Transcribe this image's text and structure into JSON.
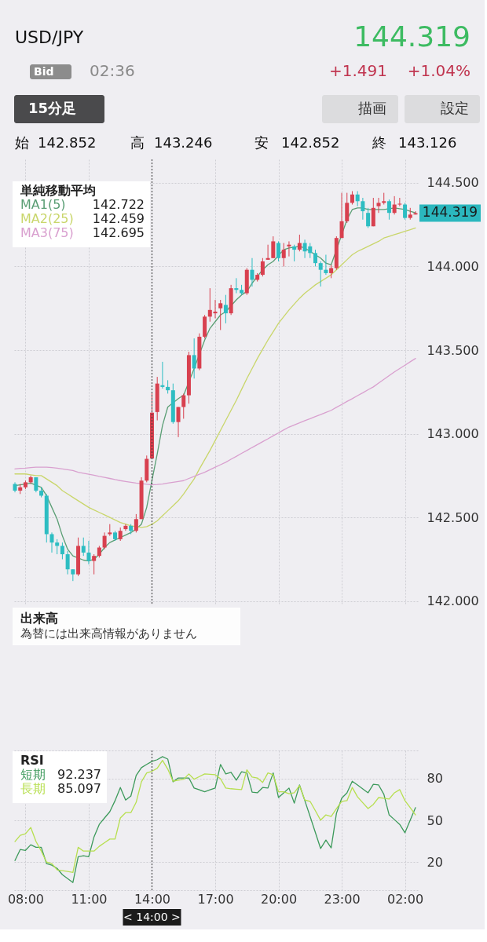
{
  "chart_data": [
    {
      "type": "other",
      "title": "USD/JPY",
      "annotations": [
        "144.319",
        "+1.491",
        "+1.04%",
        "Bid",
        "02:36",
        "15分足",
        "描画",
        "設定",
        "始",
        "142.852",
        "高",
        "143.246",
        "安",
        "142.852",
        "終",
        "143.126"
      ]
    },
    {
      "type": "candlestick",
      "categories": [
        null,
        null,
        "08:00",
        null,
        null,
        null,
        null,
        null,
        null,
        null,
        null,
        null,
        null,
        null,
        "11:00",
        null,
        null,
        null,
        null,
        null,
        null,
        null,
        null,
        null,
        null,
        null,
        "14:00",
        null,
        null,
        null,
        null,
        null,
        null,
        null,
        null,
        null,
        null,
        null,
        "17:00",
        null,
        null,
        null,
        null,
        null,
        null,
        null,
        null,
        null,
        null,
        null,
        "20:00",
        null,
        null,
        null,
        null,
        null,
        null,
        null,
        null,
        null,
        null,
        null,
        "23:00",
        null,
        null,
        null,
        null,
        null,
        null,
        null,
        null,
        null,
        null,
        null,
        "02:00",
        null,
        null
      ],
      "ohlc": [
        [
          142.7,
          142.71,
          142.65,
          142.66
        ],
        [
          142.66,
          142.7,
          142.64,
          142.68
        ],
        [
          142.68,
          142.72,
          142.67,
          142.71
        ],
        [
          142.71,
          142.75,
          142.7,
          142.74
        ],
        [
          142.74,
          142.74,
          142.65,
          142.66
        ],
        [
          142.66,
          142.68,
          142.62,
          142.63
        ],
        [
          142.63,
          142.64,
          142.35,
          142.4
        ],
        [
          142.4,
          142.41,
          142.29,
          142.35
        ],
        [
          142.35,
          142.37,
          142.28,
          142.33
        ],
        [
          142.33,
          142.35,
          142.25,
          142.28
        ],
        [
          142.28,
          142.3,
          142.16,
          142.19
        ],
        [
          142.19,
          142.19,
          142.12,
          142.16
        ],
        [
          142.16,
          142.38,
          142.15,
          142.33
        ],
        [
          142.33,
          142.38,
          142.27,
          142.29
        ],
        [
          142.29,
          142.36,
          142.22,
          142.24
        ],
        [
          142.24,
          142.28,
          142.16,
          142.27
        ],
        [
          142.27,
          142.33,
          142.26,
          142.32
        ],
        [
          142.32,
          142.41,
          142.31,
          142.39
        ],
        [
          142.4,
          142.46,
          142.39,
          142.41
        ],
        [
          142.41,
          142.42,
          142.36,
          142.37
        ],
        [
          142.37,
          142.44,
          142.36,
          142.42
        ],
        [
          142.43,
          142.46,
          142.42,
          142.45
        ],
        [
          142.45,
          142.46,
          142.4,
          142.42
        ],
        [
          142.42,
          142.52,
          142.41,
          142.49
        ],
        [
          142.49,
          142.74,
          142.49,
          142.72
        ],
        [
          142.72,
          142.87,
          142.71,
          142.85
        ],
        [
          142.852,
          143.246,
          142.852,
          143.126
        ],
        [
          143.13,
          143.34,
          143.08,
          143.3
        ],
        [
          143.29,
          143.43,
          143.27,
          143.28
        ],
        [
          143.28,
          143.32,
          143.24,
          143.26
        ],
        [
          143.26,
          143.3,
          143.06,
          143.07
        ],
        [
          143.07,
          143.16,
          142.98,
          143.16
        ],
        [
          143.16,
          143.24,
          143.09,
          143.23
        ],
        [
          143.23,
          143.49,
          143.18,
          143.47
        ],
        [
          143.47,
          143.57,
          143.33,
          143.39
        ],
        [
          143.39,
          143.6,
          143.38,
          143.58
        ],
        [
          143.58,
          143.71,
          143.57,
          143.7
        ],
        [
          143.7,
          143.87,
          143.67,
          143.74
        ],
        [
          143.72,
          143.8,
          143.69,
          143.73
        ],
        [
          143.75,
          143.8,
          143.62,
          143.78
        ],
        [
          143.77,
          143.83,
          143.66,
          143.72
        ],
        [
          143.72,
          143.89,
          143.71,
          143.87
        ],
        [
          143.87,
          143.93,
          143.84,
          143.86
        ],
        [
          143.86,
          143.89,
          143.83,
          143.84
        ],
        [
          143.84,
          143.99,
          143.83,
          143.98
        ],
        [
          143.98,
          144.05,
          143.88,
          143.92
        ],
        [
          143.92,
          143.96,
          143.91,
          143.95
        ],
        [
          143.95,
          144.05,
          143.94,
          144.03
        ],
        [
          144.04,
          144.13,
          144.04,
          144.05
        ],
        [
          144.05,
          144.18,
          144.05,
          144.15
        ],
        [
          144.14,
          144.15,
          144.03,
          144.05
        ],
        [
          144.05,
          144.14,
          144.0,
          144.1
        ],
        [
          144.12,
          144.15,
          144.06,
          144.13
        ],
        [
          144.12,
          144.13,
          144.03,
          144.1
        ],
        [
          144.1,
          144.19,
          144.09,
          144.14
        ],
        [
          144.14,
          144.16,
          144.05,
          144.09
        ],
        [
          144.12,
          144.14,
          144.05,
          144.08
        ],
        [
          144.08,
          144.1,
          144.0,
          144.02
        ],
        [
          144.02,
          144.03,
          143.88,
          143.98
        ],
        [
          143.98,
          144.07,
          143.95,
          143.96
        ],
        [
          143.96,
          144.01,
          143.93,
          143.99
        ],
        [
          143.99,
          144.18,
          143.98,
          144.17
        ],
        [
          144.17,
          144.44,
          144.17,
          144.27
        ],
        [
          144.27,
          144.44,
          144.26,
          144.38
        ],
        [
          144.38,
          144.45,
          144.37,
          144.43
        ],
        [
          144.43,
          144.45,
          144.36,
          144.39
        ],
        [
          144.39,
          144.41,
          144.28,
          144.33
        ],
        [
          144.32,
          144.35,
          144.23,
          144.24
        ],
        [
          144.24,
          144.41,
          144.24,
          144.35
        ],
        [
          144.36,
          144.41,
          144.32,
          144.38
        ],
        [
          144.38,
          144.44,
          144.37,
          144.39
        ],
        [
          144.39,
          144.4,
          144.28,
          144.32
        ],
        [
          144.32,
          144.42,
          144.31,
          144.37
        ],
        [
          144.37,
          144.41,
          144.36,
          144.375
        ],
        [
          144.37,
          144.38,
          144.28,
          144.29
        ],
        [
          144.29,
          144.35,
          144.28,
          144.31
        ],
        [
          144.31,
          144.33,
          144.31,
          144.319
        ]
      ],
      "colors": [
        "#2dbdc2",
        "#d8404f",
        "#d8404f",
        "#d8404f",
        "#2dbdc2",
        "#2dbdc2",
        "#2dbdc2",
        "#2dbdc2",
        "#2dbdc2",
        "#2dbdc2",
        "#2dbdc2",
        "#2dbdc2",
        "#d8404f",
        "#2dbdc2",
        "#2dbdc2",
        "#d8404f",
        "#d8404f",
        "#d8404f",
        "#d8404f",
        "#2dbdc2",
        "#d8404f",
        "#d8404f",
        "#2dbdc2",
        "#d8404f",
        "#d8404f",
        "#d8404f",
        "#d8404f",
        "#d8404f",
        "#2dbdc2",
        "#2dbdc2",
        "#2dbdc2",
        "#d8404f",
        "#d8404f",
        "#d8404f",
        "#2dbdc2",
        "#d8404f",
        "#d8404f",
        "#d8404f",
        "#d8404f",
        "#d8404f",
        "#2dbdc2",
        "#d8404f",
        "#2dbdc2",
        "#2dbdc2",
        "#d8404f",
        "#2dbdc2",
        "#d8404f",
        "#d8404f",
        "#d8404f",
        "#d8404f",
        "#2dbdc2",
        "#d8404f",
        "#d8404f",
        "#2dbdc2",
        "#d8404f",
        "#2dbdc2",
        "#2dbdc2",
        "#2dbdc2",
        "#2dbdc2",
        "#2dbdc2",
        "#d8404f",
        "#d8404f",
        "#d8404f",
        "#d8404f",
        "#d8404f",
        "#2dbdc2",
        "#2dbdc2",
        "#2dbdc2",
        "#d8404f",
        "#d8404f",
        "#d8404f",
        "#2dbdc2",
        "#d8404f",
        "#d8404f",
        "#2dbdc2",
        "#d8404f",
        "#d8404f"
      ],
      "series": [
        {
          "name": "MA1(5)",
          "type": "line",
          "color": "#5a9e74",
          "values": [
            142.69,
            142.695,
            142.7,
            142.705,
            null,
            142.68,
            142.63,
            142.56,
            142.49,
            142.39,
            142.31,
            142.27,
            null,
            142.245,
            142.24,
            142.25,
            142.28,
            142.32,
            142.35,
            142.365,
            142.38,
            142.395,
            142.41,
            142.43,
            142.46,
            142.56,
            142.722,
            142.88,
            143.05,
            143.16,
            null,
            143.21,
            143.23,
            null,
            143.39,
            null,
            143.56,
            143.63,
            143.67,
            143.71,
            143.73,
            null,
            143.8,
            143.83,
            143.85,
            143.9,
            143.94,
            143.98,
            144.01,
            144.03,
            null,
            144.1,
            144.11,
            144.115,
            144.12,
            144.11,
            144.09,
            144.07,
            144.05,
            144.02,
            144.01,
            null,
            144.19,
            144.28,
            144.34,
            144.35,
            144.35,
            144.34,
            144.34,
            144.34,
            144.34,
            144.345,
            144.35,
            144.345,
            144.34,
            144.33,
            144.32
          ]
        },
        {
          "name": "MA2(25)",
          "type": "line",
          "color": "#c9d66b",
          "values": [
            142.76,
            142.76,
            142.76,
            142.755,
            142.75,
            142.75,
            142.73,
            142.71,
            142.69,
            142.66,
            142.64,
            142.62,
            142.6,
            142.58,
            142.56,
            142.545,
            142.53,
            142.515,
            142.5,
            142.485,
            142.47,
            142.46,
            142.45,
            null,
            142.44,
            142.445,
            142.459,
            142.48,
            142.51,
            142.54,
            142.57,
            142.6,
            142.64,
            142.685,
            142.73,
            142.79,
            142.845,
            142.9,
            142.96,
            143.02,
            143.08,
            143.14,
            143.2,
            143.265,
            143.33,
            143.39,
            143.45,
            143.505,
            143.56,
            143.61,
            143.66,
            143.7,
            143.74,
            143.775,
            143.81,
            143.84,
            143.865,
            143.89,
            143.91,
            143.93,
            143.95,
            143.98,
            144.01,
            144.04,
            144.07,
            144.09,
            144.105,
            144.12,
            144.135,
            144.15,
            144.17,
            144.18,
            144.19,
            144.2,
            144.21,
            144.22,
            144.23
          ]
        },
        {
          "name": "MA3(75)",
          "type": "line",
          "color": "#d9a0cf",
          "values": [
            142.79,
            142.793,
            142.795,
            142.798,
            142.8,
            142.8,
            142.8,
            142.798,
            142.795,
            142.79,
            142.785,
            142.78,
            142.77,
            142.764,
            142.758,
            142.752,
            142.745,
            142.739,
            142.733,
            142.726,
            142.72,
            142.715,
            142.71,
            142.705,
            null,
            142.698,
            142.695,
            142.697,
            142.7,
            142.705,
            142.71,
            142.715,
            142.72,
            142.733,
            142.745,
            142.758,
            142.77,
            142.785,
            142.8,
            142.815,
            142.83,
            142.848,
            142.865,
            142.883,
            142.9,
            142.918,
            142.935,
            142.953,
            142.97,
            142.988,
            143.005,
            143.023,
            143.04,
            143.053,
            143.065,
            143.078,
            143.09,
            143.103,
            143.115,
            143.128,
            143.14,
            143.158,
            143.175,
            143.193,
            143.21,
            143.228,
            143.245,
            143.263,
            143.28,
            143.303,
            143.325,
            143.348,
            143.37,
            143.39,
            143.41,
            143.43,
            143.45
          ]
        }
      ],
      "legend_title": "単純移動平均",
      "legend": "top left",
      "annotations": [
        "142.722",
        "142.459",
        "142.695",
        "144.319"
      ],
      "ylim": [
        141.98,
        144.64
      ],
      "yticks": [
        {
          "value": 142,
          "label": "142.000"
        },
        {
          "value": 142.5,
          "label": "142.500"
        },
        {
          "value": 143,
          "label": "143.000"
        },
        {
          "value": 143.5,
          "label": "143.500"
        },
        {
          "value": 144,
          "label": "144.000"
        },
        {
          "value": 144.5,
          "label": "144.500"
        }
      ],
      "tick_labels": "y",
      "grid": true,
      "ref_lines": [
        {
          "axis": "x",
          "value": "14:00",
          "color": "#333333",
          "line_style": "dotted"
        }
      ]
    },
    {
      "type": "other",
      "title": "出来高",
      "annotations": [
        "為替には出来高情報がありません"
      ]
    },
    {
      "type": "line",
      "categories": [
        null,
        null,
        "08:00",
        null,
        null,
        null,
        null,
        null,
        null,
        null,
        null,
        null,
        null,
        null,
        "11:00",
        null,
        null,
        null,
        null,
        null,
        null,
        null,
        null,
        null,
        null,
        null,
        "14:00",
        null,
        null,
        null,
        null,
        null,
        null,
        null,
        null,
        null,
        null,
        null,
        "17:00",
        null,
        null,
        null,
        null,
        null,
        null,
        null,
        null,
        null,
        null,
        null,
        "20:00",
        null,
        null,
        null,
        null,
        null,
        null,
        null,
        null,
        null,
        null,
        null,
        "23:00",
        null,
        null,
        null,
        null,
        null,
        null,
        null,
        null,
        null,
        null,
        null,
        "02:00",
        null,
        null
      ],
      "legend_title": "RSI",
      "legend": "top left",
      "series": [
        {
          "name": "短期",
          "color": "#3d9a5b",
          "values": [
            21.2,
            29.1,
            28.5,
            32.5,
            30.7,
            30.7,
            19.0,
            17.9,
            15.6,
            11.1,
            8.3,
            5.5,
            24.0,
            24.6,
            24.0,
            38.1,
            47.1,
            51.7,
            56.2,
            64.1,
            73.5,
            64.5,
            67.4,
            82.1,
            87.7,
            90.0,
            92.2,
            93.4,
            95.6,
            93.8,
            77.6,
            80.3,
            80.3,
            80.3,
            73.1,
            71.8,
            70.4,
            71.8,
            73.1,
            90.0,
            83.2,
            84.4,
            78.7,
            84.8,
            83.9,
            70.2,
            69.7,
            73.5,
            73.1,
            83.9,
            66.3,
            69.7,
            73.1,
            62.3,
            75.3,
            64.1,
            52.8,
            41.3,
            29.8,
            35.9,
            30.3,
            55.0,
            65.9,
            69.7,
            78.0,
            75.3,
            72.5,
            69.7,
            75.8,
            75.3,
            68.6,
            53.9,
            50.5,
            47.1,
            41.1,
            50.1,
            59.1
          ]
        },
        {
          "name": "長期",
          "color": "#b7df4f",
          "values": [
            34.8,
            39.3,
            40.4,
            44.9,
            34.8,
            28.0,
            20.1,
            19.0,
            14.5,
            14.0,
            13.4,
            12.7,
            30.7,
            28.0,
            28.0,
            28.0,
            31.4,
            34.0,
            36.6,
            36.6,
            51.7,
            55.5,
            55.5,
            62.9,
            77.6,
            83.9,
            85.1,
            87.3,
            92.9,
            86.6,
            78.0,
            78.7,
            79.4,
            83.2,
            79.4,
            81.3,
            83.2,
            82.9,
            82.6,
            79.8,
            73.1,
            72.6,
            72.3,
            72.0,
            86.2,
            81.0,
            80.3,
            77.1,
            83.9,
            82.6,
            70.4,
            70.4,
            69.0,
            69.7,
            74.9,
            64.5,
            63.6,
            56.9,
            50.1,
            53.9,
            52.8,
            58.4,
            63.6,
            64.1,
            73.5,
            66.8,
            62.6,
            58.4,
            61.4,
            66.3,
            65.8,
            65.2,
            69.7,
            72.0,
            64.1,
            59.0,
            53.9
          ]
        }
      ],
      "annotations": [
        "92.237",
        "85.097",
        "< 14:00 >"
      ],
      "ylim": [
        0,
        100
      ],
      "yticks": [
        {
          "value": 0,
          "label": null
        },
        20,
        50,
        80,
        {
          "value": 100,
          "label": null
        }
      ],
      "grid": true,
      "ref_lines": [
        {
          "axis": "x",
          "value": "14:00",
          "color": "#333333",
          "line_style": "dotted"
        }
      ]
    }
  ]
}
